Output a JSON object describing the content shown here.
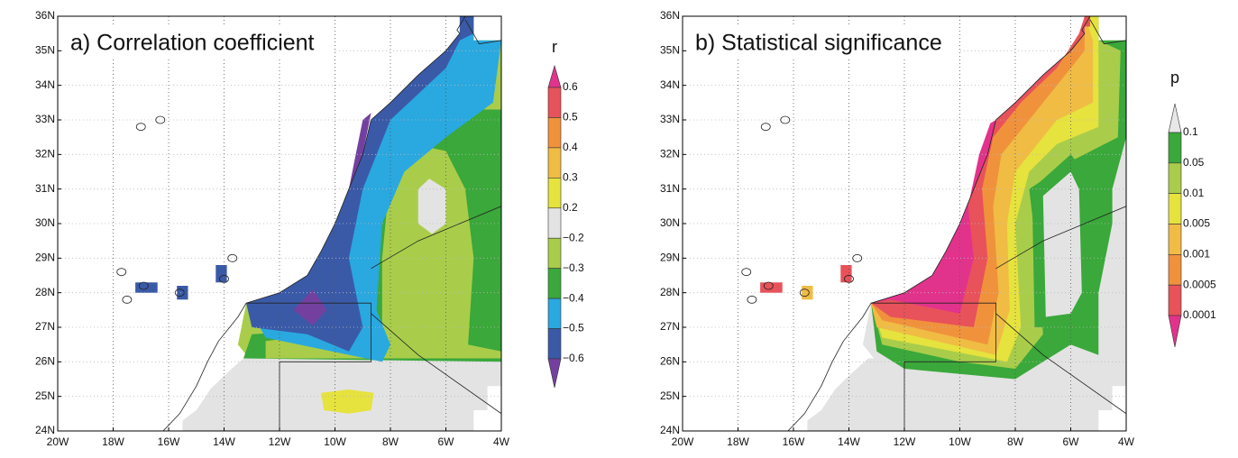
{
  "panels": [
    {
      "title": "a) Correlation coefficient",
      "lat_labels": [
        "36N",
        "35N",
        "34N",
        "33N",
        "32N",
        "31N",
        "30N",
        "29N",
        "28N",
        "27N",
        "26N",
        "25N",
        "24N"
      ],
      "lon_labels": [
        "20W",
        "18W",
        "16W",
        "14W",
        "12W",
        "10W",
        "8W",
        "6W",
        "4W"
      ],
      "colorbar": {
        "label": "r",
        "ticks": [
          "0.6",
          "0.5",
          "0.4",
          "0.3",
          "0.2",
          "−0.2",
          "−0.3",
          "−0.4",
          "−0.5",
          "−0.6"
        ]
      }
    },
    {
      "title": "b) Statistical significance",
      "lat_labels": [
        "36N",
        "35N",
        "34N",
        "33N",
        "32N",
        "31N",
        "30N",
        "29N",
        "28N",
        "27N",
        "26N",
        "25N",
        "24N"
      ],
      "lon_labels": [
        "20W",
        "18W",
        "16W",
        "14W",
        "12W",
        "10W",
        "8W",
        "6W",
        "4W"
      ],
      "colorbar": {
        "label": "p",
        "ticks": [
          "0.1",
          "0.05",
          "0.01",
          "0.005",
          "0.001",
          "0.0005",
          "0.0001"
        ]
      }
    }
  ]
}
